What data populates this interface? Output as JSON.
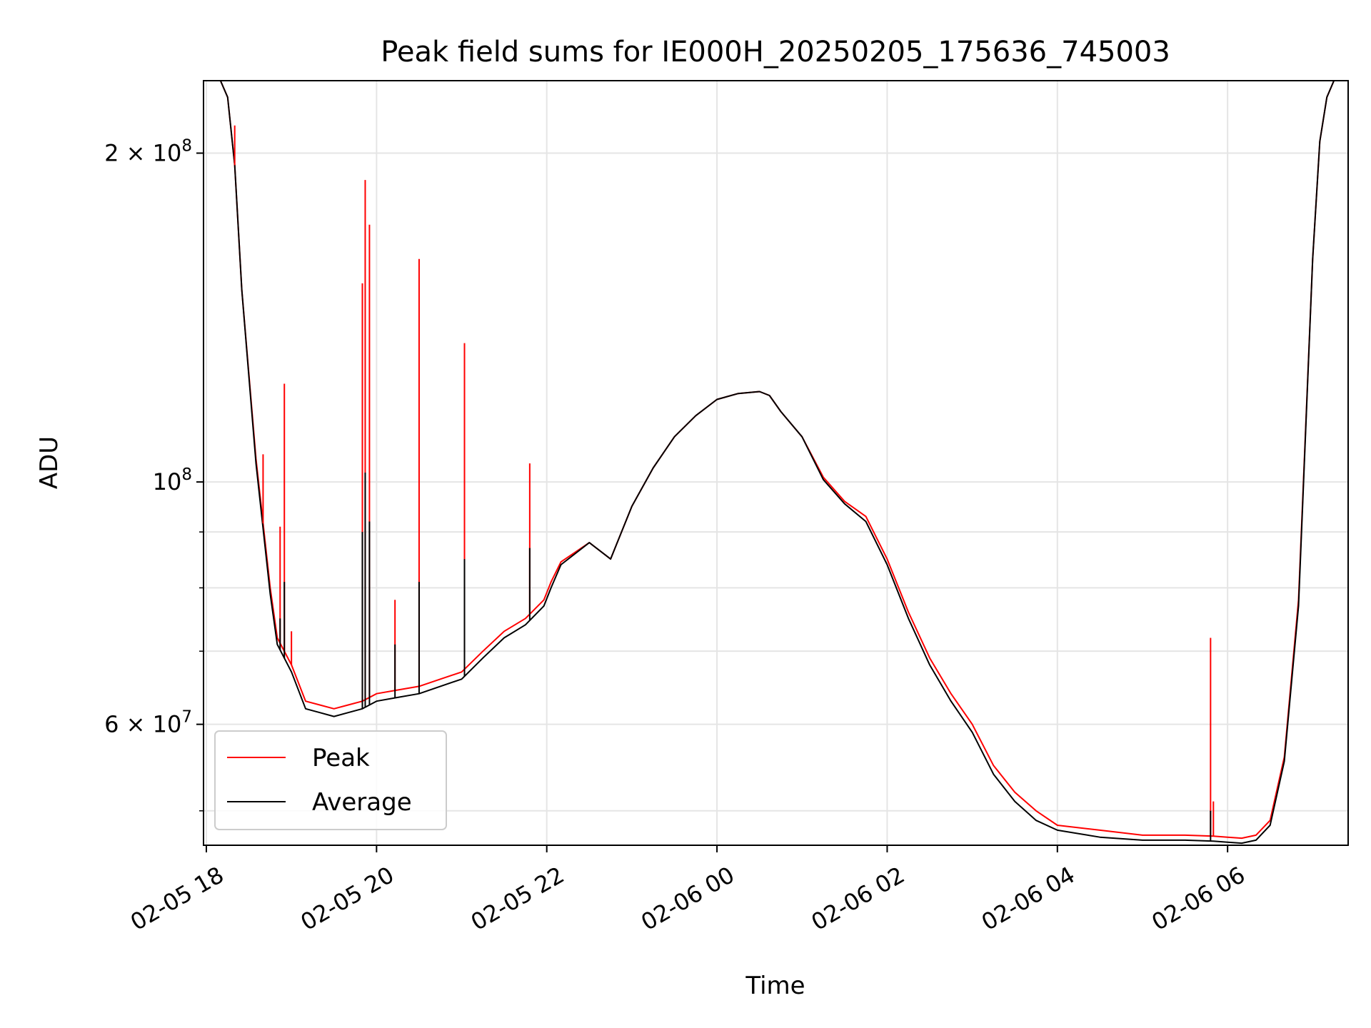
{
  "chart_data": {
    "type": "line",
    "title": "Peak field sums for IE000H_20250205_175636_745003",
    "xlabel": "Time",
    "ylabel": "ADU",
    "y_scale": "log",
    "grid": true,
    "legend_placement": "lower-left",
    "xlim": [
      "2025-02-05 17:58",
      "2025-02-06 07:25"
    ],
    "ylim": [
      46500000,
      233000000
    ],
    "x_ticks": [
      {
        "value": "2025-02-05 18:00",
        "label": "02-05 18"
      },
      {
        "value": "2025-02-05 20:00",
        "label": "02-05 20"
      },
      {
        "value": "2025-02-05 22:00",
        "label": "02-05 22"
      },
      {
        "value": "2025-02-06 00:00",
        "label": "02-06 00"
      },
      {
        "value": "2025-02-06 02:00",
        "label": "02-06 02"
      },
      {
        "value": "2025-02-06 04:00",
        "label": "02-06 04"
      },
      {
        "value": "2025-02-06 06:00",
        "label": "02-06 06"
      }
    ],
    "y_ticks_major": [
      {
        "value": 60000000,
        "label_base": "6 × 10",
        "label_exp": "7"
      },
      {
        "value": 100000000,
        "label_base": "10",
        "label_exp": "8"
      },
      {
        "value": 200000000,
        "label_base": "2 × 10",
        "label_exp": "8"
      }
    ],
    "y_ticks_minor": [
      50000000,
      70000000,
      80000000,
      90000000,
      300000000
    ],
    "series": [
      {
        "name": "Peak",
        "color": "#ff0000",
        "x": [
          "2025-02-05 17:58",
          "2025-02-05 18:10",
          "2025-02-05 18:15",
          "2025-02-05 18:20",
          "2025-02-05 18:25",
          "2025-02-05 18:35",
          "2025-02-05 18:45",
          "2025-02-05 18:50",
          "2025-02-05 19:00",
          "2025-02-05 19:10",
          "2025-02-05 19:20",
          "2025-02-05 19:30",
          "2025-02-05 19:40",
          "2025-02-05 19:50",
          "2025-02-05 20:00",
          "2025-02-05 20:15",
          "2025-02-05 20:30",
          "2025-02-05 20:45",
          "2025-02-05 21:00",
          "2025-02-05 21:15",
          "2025-02-05 21:30",
          "2025-02-05 21:45",
          "2025-02-05 21:58",
          "2025-02-05 22:03",
          "2025-02-05 22:10",
          "2025-02-05 22:30",
          "2025-02-05 22:45",
          "2025-02-05 23:00",
          "2025-02-05 23:15",
          "2025-02-05 23:30",
          "2025-02-05 23:45",
          "2025-02-06 00:00",
          "2025-02-06 00:15",
          "2025-02-06 00:30",
          "2025-02-06 00:37",
          "2025-02-06 00:45",
          "2025-02-06 01:00",
          "2025-02-06 01:15",
          "2025-02-06 01:30",
          "2025-02-06 01:45",
          "2025-02-06 02:00",
          "2025-02-06 02:15",
          "2025-02-06 02:30",
          "2025-02-06 02:45",
          "2025-02-06 03:00",
          "2025-02-06 03:15",
          "2025-02-06 03:30",
          "2025-02-06 03:45",
          "2025-02-06 04:00",
          "2025-02-06 04:30",
          "2025-02-06 05:00",
          "2025-02-06 05:30",
          "2025-02-06 05:50",
          "2025-02-06 06:00",
          "2025-02-06 06:10",
          "2025-02-06 06:20",
          "2025-02-06 06:30",
          "2025-02-06 06:40",
          "2025-02-06 06:50",
          "2025-02-06 07:00",
          "2025-02-06 07:05",
          "2025-02-06 07:10",
          "2025-02-06 07:15",
          "2025-02-06 07:25"
        ],
        "y": [
          233000000,
          233000000,
          225000000,
          195000000,
          150000000,
          105000000,
          80000000,
          72000000,
          68000000,
          63000000,
          62500000,
          62000000,
          62500000,
          63000000,
          64000000,
          64500000,
          65000000,
          66000000,
          67000000,
          70000000,
          73000000,
          75000000,
          78000000,
          81000000,
          84500000,
          88000000,
          85000000,
          95000000,
          103000000,
          110000000,
          115000000,
          119000000,
          120500000,
          121000000,
          120000000,
          116000000,
          110000000,
          101000000,
          96000000,
          93000000,
          85000000,
          76000000,
          69000000,
          64000000,
          60000000,
          55000000,
          52000000,
          50000000,
          48500000,
          48000000,
          47500000,
          47500000,
          47400000,
          47300000,
          47200000,
          47500000,
          49000000,
          56000000,
          78000000,
          160000000,
          205000000,
          225000000,
          233000000,
          233000000
        ]
      },
      {
        "name": "Average",
        "color": "#000000",
        "x": [
          "2025-02-05 17:58",
          "2025-02-05 18:10",
          "2025-02-05 18:15",
          "2025-02-05 18:20",
          "2025-02-05 18:25",
          "2025-02-05 18:35",
          "2025-02-05 18:45",
          "2025-02-05 18:50",
          "2025-02-05 19:00",
          "2025-02-05 19:10",
          "2025-02-05 19:20",
          "2025-02-05 19:30",
          "2025-02-05 19:40",
          "2025-02-05 19:50",
          "2025-02-05 20:00",
          "2025-02-05 20:15",
          "2025-02-05 20:30",
          "2025-02-05 20:45",
          "2025-02-05 21:00",
          "2025-02-05 21:15",
          "2025-02-05 21:30",
          "2025-02-05 21:45",
          "2025-02-05 21:58",
          "2025-02-05 22:03",
          "2025-02-05 22:10",
          "2025-02-05 22:30",
          "2025-02-05 22:45",
          "2025-02-05 23:00",
          "2025-02-05 23:15",
          "2025-02-05 23:30",
          "2025-02-05 23:45",
          "2025-02-06 00:00",
          "2025-02-06 00:15",
          "2025-02-06 00:30",
          "2025-02-06 00:37",
          "2025-02-06 00:45",
          "2025-02-06 01:00",
          "2025-02-06 01:15",
          "2025-02-06 01:30",
          "2025-02-06 01:45",
          "2025-02-06 02:00",
          "2025-02-06 02:15",
          "2025-02-06 02:30",
          "2025-02-06 02:45",
          "2025-02-06 03:00",
          "2025-02-06 03:15",
          "2025-02-06 03:30",
          "2025-02-06 03:45",
          "2025-02-06 04:00",
          "2025-02-06 04:30",
          "2025-02-06 05:00",
          "2025-02-06 05:30",
          "2025-02-06 05:50",
          "2025-02-06 06:00",
          "2025-02-06 06:10",
          "2025-02-06 06:20",
          "2025-02-06 06:30",
          "2025-02-06 06:40",
          "2025-02-06 06:50",
          "2025-02-06 07:00",
          "2025-02-06 07:05",
          "2025-02-06 07:10",
          "2025-02-06 07:15",
          "2025-02-06 07:25"
        ],
        "y": [
          233000000,
          233000000,
          225000000,
          195000000,
          150000000,
          104000000,
          79000000,
          71000000,
          67000000,
          62000000,
          61500000,
          61000000,
          61500000,
          62000000,
          63000000,
          63500000,
          64000000,
          65000000,
          66000000,
          69000000,
          72000000,
          74000000,
          77000000,
          80000000,
          84000000,
          88000000,
          85000000,
          95000000,
          103000000,
          110000000,
          115000000,
          119000000,
          120500000,
          121000000,
          120000000,
          116000000,
          110000000,
          100500000,
          95500000,
          92000000,
          84000000,
          75000000,
          68000000,
          63000000,
          59000000,
          54000000,
          51000000,
          49000000,
          48000000,
          47300000,
          47000000,
          47000000,
          46900000,
          46800000,
          46700000,
          47000000,
          48500000,
          55500000,
          77000000,
          160000000,
          205000000,
          225000000,
          233000000,
          233000000
        ]
      }
    ],
    "spikes": [
      {
        "series": "Peak",
        "x": "2025-02-05 18:20",
        "y": 212000000
      },
      {
        "series": "Peak",
        "x": "2025-02-05 18:40",
        "y": 106000000
      },
      {
        "series": "Peak",
        "x": "2025-02-05 18:52",
        "y": 91000000
      },
      {
        "series": "Peak",
        "x": "2025-02-05 18:55",
        "y": 123000000
      },
      {
        "series": "Peak",
        "x": "2025-02-05 19:00",
        "y": 73000000
      },
      {
        "series": "Peak",
        "x": "2025-02-05 19:50",
        "y": 152000000
      },
      {
        "series": "Peak",
        "x": "2025-02-05 19:52",
        "y": 189000000
      },
      {
        "series": "Peak",
        "x": "2025-02-05 19:55",
        "y": 172000000
      },
      {
        "series": "Peak",
        "x": "2025-02-05 20:13",
        "y": 78000000
      },
      {
        "series": "Peak",
        "x": "2025-02-05 20:30",
        "y": 160000000
      },
      {
        "series": "Peak",
        "x": "2025-02-05 21:02",
        "y": 134000000
      },
      {
        "series": "Peak",
        "x": "2025-02-05 21:48",
        "y": 104000000
      },
      {
        "series": "Peak",
        "x": "2025-02-06 05:48",
        "y": 72000000
      },
      {
        "series": "Peak",
        "x": "2025-02-06 05:50",
        "y": 51000000
      },
      {
        "series": "Average",
        "x": "2025-02-05 18:52",
        "y": 75000000
      },
      {
        "series": "Average",
        "x": "2025-02-05 18:55",
        "y": 81000000
      },
      {
        "series": "Average",
        "x": "2025-02-05 19:50",
        "y": 90000000
      },
      {
        "series": "Average",
        "x": "2025-02-05 19:52",
        "y": 102000000
      },
      {
        "series": "Average",
        "x": "2025-02-05 19:55",
        "y": 92000000
      },
      {
        "series": "Average",
        "x": "2025-02-05 20:13",
        "y": 71000000
      },
      {
        "series": "Average",
        "x": "2025-02-05 20:30",
        "y": 81000000
      },
      {
        "series": "Average",
        "x": "2025-02-05 21:02",
        "y": 85000000
      },
      {
        "series": "Average",
        "x": "2025-02-05 21:48",
        "y": 87000000
      },
      {
        "series": "Average",
        "x": "2025-02-06 05:48",
        "y": 50000000
      }
    ]
  }
}
